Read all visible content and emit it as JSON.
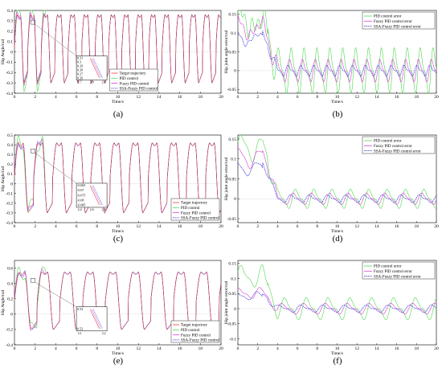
{
  "colors": {
    "target": "#e8403a",
    "pid": "#4cd94c",
    "fuzzy": "#d93fd9",
    "ssa": "#2b2bd6"
  },
  "chart_data": [
    {
      "id": "a",
      "type": "line",
      "caption": "(a)",
      "xlabel": "Time/s",
      "ylabel": "Hip Angle/rad",
      "xlim": [
        0,
        20
      ],
      "ylim": [
        -0.4,
        0.4
      ],
      "xticks": [
        0,
        2,
        4,
        6,
        8,
        10,
        12,
        14,
        16,
        18,
        20
      ],
      "yticks": [
        -0.4,
        -0.3,
        -0.2,
        -0.1,
        0,
        0.1,
        0.2,
        0.3,
        0.4
      ],
      "period": 1.3,
      "amplitude_max": 0.36,
      "amplitude_min": -0.3,
      "legend": [
        "Target trajectory",
        "PID control",
        "Fuzzy PID control",
        "SSA-Fuzzy PID control"
      ],
      "legend_position": "bottom-center",
      "inset": {
        "xticks": [
          "2.7",
          "2.8",
          "2.9"
        ],
        "yticks": [
          "0.31",
          "0.3",
          "0.29",
          "0.28",
          "0.27",
          "0.26"
        ]
      }
    },
    {
      "id": "b",
      "type": "line",
      "caption": "(b)",
      "xlabel": "Time/s",
      "ylabel": "Hip joint angle error/rad",
      "xlim": [
        0,
        20
      ],
      "ylim": [
        -0.06,
        0.16
      ],
      "xticks": [
        0,
        2,
        4,
        6,
        8,
        10,
        12,
        14,
        16,
        18,
        20
      ],
      "yticks": [
        -0.05,
        0,
        0.05,
        0.1,
        0.15
      ],
      "legend": [
        "PID control error",
        "Fuzzy PID control error",
        "SSA-Fuzzy PID control error"
      ],
      "legend_position": "top-right",
      "series_peak": {
        "pid": 0.15,
        "fuzzy": 0.13,
        "ssa": 0.1
      },
      "steady_amplitude": {
        "pid": 0.05,
        "fuzzy": 0.025,
        "ssa": 0.012
      }
    },
    {
      "id": "c",
      "type": "line",
      "caption": "(c)",
      "xlabel": "Time/s",
      "ylabel": "Hip Angle/rad",
      "xlim": [
        0,
        20
      ],
      "ylim": [
        -0.4,
        0.5
      ],
      "xticks": [
        0,
        2,
        4,
        6,
        8,
        10,
        12,
        14,
        16,
        18,
        20
      ],
      "yticks": [
        -0.4,
        -0.3,
        -0.2,
        -0.1,
        0,
        0.1,
        0.2,
        0.3,
        0.4,
        0.5
      ],
      "period": 1.85,
      "amplitude_max": 0.42,
      "amplitude_min": -0.3,
      "legend": [
        "Target trajectory",
        "PID control",
        "Fuzzy PID control",
        "SSA-Fuzzy PID control"
      ],
      "legend_position": "bottom-right",
      "inset": {
        "xticks": [
          "2.4",
          "2.6",
          "2.8"
        ],
        "yticks": [
          "-0.065",
          "-0.07",
          "-0.075",
          "-0.08",
          "-0.085"
        ]
      }
    },
    {
      "id": "d",
      "type": "line",
      "caption": "(d)",
      "xlabel": "Time/s",
      "ylabel": "Hip joint angle error/rad",
      "xlim": [
        0,
        20
      ],
      "ylim": [
        -0.06,
        0.16
      ],
      "xticks": [
        0,
        2,
        4,
        6,
        8,
        10,
        12,
        14,
        16,
        18,
        20
      ],
      "yticks": [
        -0.05,
        0,
        0.05,
        0.1,
        0.15
      ],
      "legend": [
        "PID control error",
        "Fuzzy PID control error",
        "SSA-Fuzzy PID control error"
      ],
      "legend_position": "top-right",
      "series_peak": {
        "pid": 0.15,
        "fuzzy": 0.12,
        "ssa": 0.09
      },
      "steady_amplitude": {
        "pid": 0.02,
        "fuzzy": 0.012,
        "ssa": 0.008
      }
    },
    {
      "id": "e",
      "type": "line",
      "caption": "(e)",
      "xlabel": "Time/s",
      "ylabel": "Hip Angle/rad",
      "xlim": [
        0,
        20
      ],
      "ylim": [
        -0.4,
        0.7
      ],
      "xticks": [
        0,
        2,
        4,
        6,
        8,
        10,
        12,
        14,
        16,
        18,
        20
      ],
      "yticks": [
        -0.4,
        -0.2,
        0,
        0.2,
        0.4,
        0.6
      ],
      "period": 2.2,
      "amplitude_max": 0.55,
      "amplitude_min": -0.2,
      "legend": [
        "Target trajectory",
        "PID control",
        "Fuzzy PID control",
        "SSA-Fuzzy PID control"
      ],
      "legend_position": "bottom-right",
      "inset": {
        "xticks": [
          "3.1",
          "3.2"
        ],
        "yticks": [
          "0.53",
          "0.52"
        ]
      }
    },
    {
      "id": "f",
      "type": "line",
      "caption": "(f)",
      "xlabel": "Time/s",
      "ylabel": "Hip joint angle error/rad",
      "xlim": [
        0,
        20
      ],
      "ylim": [
        -0.12,
        0.16
      ],
      "xticks": [
        0,
        2,
        4,
        6,
        8,
        10,
        12,
        14,
        16,
        18,
        20
      ],
      "yticks": [
        -0.1,
        -0.05,
        0,
        0.05,
        0.1,
        0.15
      ],
      "legend": [
        "PID control error",
        "Fuzzy PID control error",
        "SSA-Fuzzy PID control error"
      ],
      "legend_position": "top-right",
      "series_peak": {
        "pid": 0.125,
        "fuzzy": 0.06,
        "ssa": 0.05
      },
      "steady_amplitude": {
        "pid": 0.03,
        "fuzzy": 0.015,
        "ssa": 0.01
      }
    }
  ]
}
